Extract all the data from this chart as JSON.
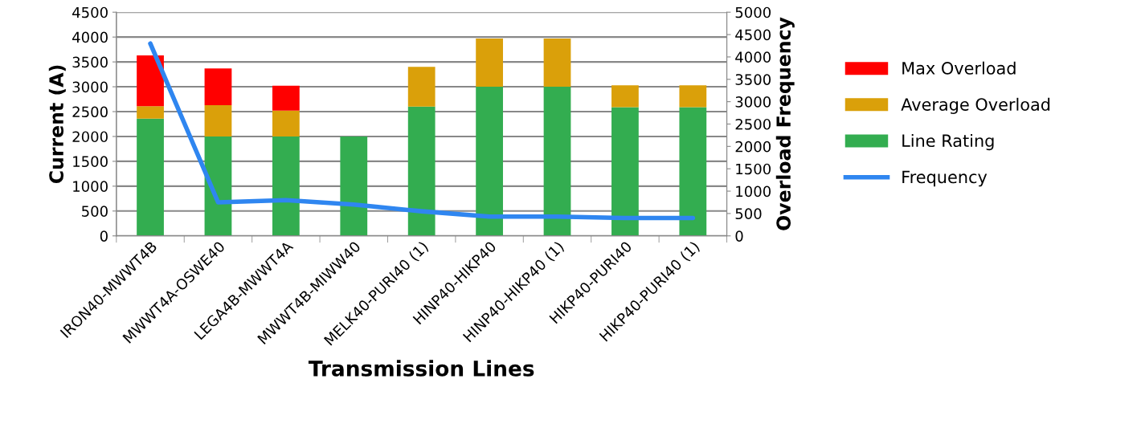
{
  "chart_data": {
    "type": "bar",
    "stacked": true,
    "xlabel": "Transmission Lines",
    "ylabel": "Current (A)",
    "y2label": "Overload Frequency",
    "categories": [
      "IRON40-MWWT4B",
      "MWWT4A-OSWE40",
      "LEGA4B-MWWT4A",
      "MWWT4B-MIWW40",
      "MELK40-PURI40 (1)",
      "HINP40-HIKP40",
      "HINP40-HIKP40 (1)",
      "HIKP40-PURI40",
      "HIKP40-PURI40 (1)"
    ],
    "series": [
      {
        "name": "Line Rating",
        "color": "#33ad50",
        "values": [
          2360,
          2000,
          2000,
          2000,
          2600,
          3000,
          3000,
          2590,
          2590
        ]
      },
      {
        "name": "Average Overload",
        "color": "#daa00a",
        "values": [
          250,
          630,
          520,
          0,
          800,
          970,
          970,
          440,
          440
        ]
      },
      {
        "name": "Max Overload",
        "color": "#ff0000",
        "values": [
          1020,
          740,
          500,
          0,
          0,
          0,
          0,
          0,
          0
        ]
      },
      {
        "name": "Frequency",
        "type": "line",
        "axis": "y2",
        "color": "#2f86f0",
        "values": [
          4300,
          750,
          800,
          700,
          550,
          430,
          430,
          400,
          400
        ]
      }
    ],
    "ylim": [
      0,
      4500
    ],
    "yticks": [
      0,
      500,
      1000,
      1500,
      2000,
      2500,
      3000,
      3500,
      4000,
      4500
    ],
    "y2lim": [
      0,
      5000
    ],
    "y2ticks": [
      0,
      500,
      1000,
      1500,
      2000,
      2500,
      3000,
      3500,
      4000,
      4500,
      5000
    ],
    "grid": "y",
    "legend": "right",
    "marker": "none",
    "line_style": "solid"
  }
}
